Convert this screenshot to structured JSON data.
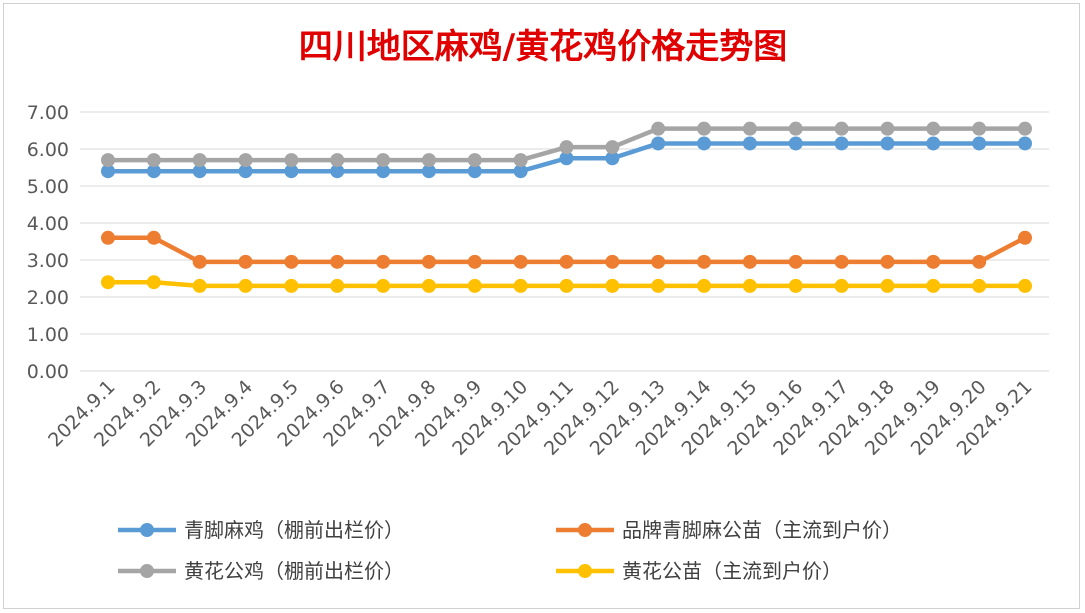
{
  "chart_data": {
    "type": "line",
    "title": "四川地区麻鸡/黄花鸡价格走势图",
    "categories": [
      "2024.9.1",
      "2024.9.2",
      "2024.9.3",
      "2024.9.4",
      "2024.9.5",
      "2024.9.6",
      "2024.9.7",
      "2024.9.8",
      "2024.9.9",
      "2024.9.10",
      "2024.9.11",
      "2024.9.12",
      "2024.9.13",
      "2024.9.14",
      "2024.9.15",
      "2024.9.16",
      "2024.9.17",
      "2024.9.18",
      "2024.9.19",
      "2024.9.20",
      "2024.9.21"
    ],
    "y_ticks": [
      "0.00",
      "1.00",
      "2.00",
      "3.00",
      "4.00",
      "5.00",
      "6.00",
      "7.00"
    ],
    "ylim": [
      0,
      7
    ],
    "grid": true,
    "legend_position": "bottom",
    "series": [
      {
        "name": "青脚麻鸡（棚前出栏价）",
        "color": "#5B9BD5",
        "values": [
          5.4,
          5.4,
          5.4,
          5.4,
          5.4,
          5.4,
          5.4,
          5.4,
          5.4,
          5.4,
          5.75,
          5.75,
          6.15,
          6.15,
          6.15,
          6.15,
          6.15,
          6.15,
          6.15,
          6.15,
          6.15
        ]
      },
      {
        "name": "品牌青脚麻公苗（主流到户价）",
        "color": "#ED7D31",
        "values": [
          3.6,
          3.6,
          2.95,
          2.95,
          2.95,
          2.95,
          2.95,
          2.95,
          2.95,
          2.95,
          2.95,
          2.95,
          2.95,
          2.95,
          2.95,
          2.95,
          2.95,
          2.95,
          2.95,
          2.95,
          3.6
        ]
      },
      {
        "name": "黄花公鸡（棚前出栏价）",
        "color": "#A5A5A5",
        "values": [
          5.7,
          5.7,
          5.7,
          5.7,
          5.7,
          5.7,
          5.7,
          5.7,
          5.7,
          5.7,
          6.05,
          6.05,
          6.55,
          6.55,
          6.55,
          6.55,
          6.55,
          6.55,
          6.55,
          6.55,
          6.55
        ]
      },
      {
        "name": "黄花公苗（主流到户价）",
        "color": "#FFC000",
        "values": [
          2.4,
          2.4,
          2.3,
          2.3,
          2.3,
          2.3,
          2.3,
          2.3,
          2.3,
          2.3,
          2.3,
          2.3,
          2.3,
          2.3,
          2.3,
          2.3,
          2.3,
          2.3,
          2.3,
          2.3,
          2.3
        ]
      }
    ]
  }
}
